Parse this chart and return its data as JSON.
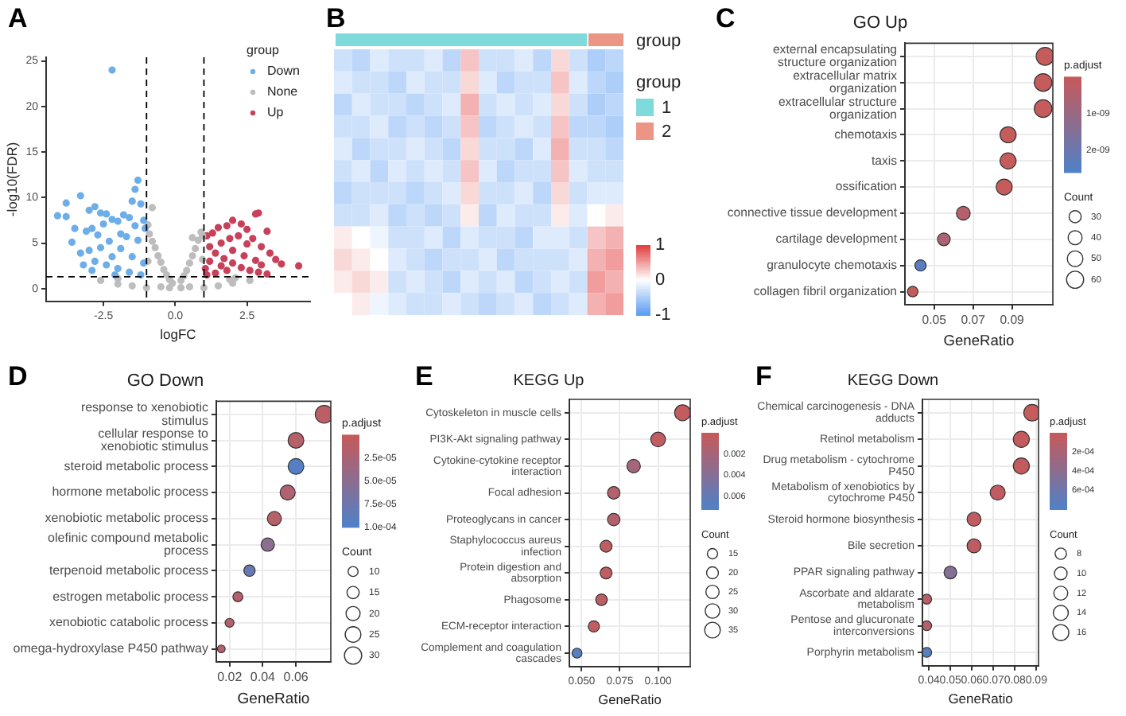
{
  "chart_data": [
    {
      "type": "scatter",
      "annotations": [
        "A"
      ],
      "xlabel": "logFC",
      "ylabel": "-log10(FDR)",
      "xlim": [
        -4.5,
        4.7
      ],
      "ylim": [
        -1.4,
        25.4
      ],
      "xticks": [
        -2.5,
        {
          "value": 0,
          "label": "0.0"
        },
        2.5
      ],
      "yticks": [
        0,
        5,
        10,
        15,
        20,
        25
      ],
      "grid": false,
      "marker": "circle",
      "legend": "top right",
      "legend_title": "group",
      "ref_lines": [
        {
          "axis": "x",
          "value": -1,
          "line_style": "dashed"
        },
        {
          "axis": "x",
          "value": 1,
          "line_style": "dashed"
        },
        {
          "axis": "y",
          "value": 1.3,
          "line_style": "dashed"
        }
      ],
      "series": [
        {
          "name": "Down",
          "color": "#6eaee8",
          "x": [
            -2.2,
            -1.3,
            -1.4,
            -1.5,
            -1.2,
            -3.3,
            -3.8,
            -4.1,
            -3.8,
            -2.8,
            -3.0,
            -2.6,
            -2.4,
            -3.5,
            -3.6,
            -3.1,
            -2.9,
            -2.7,
            -2.5,
            -2.2,
            -2.0,
            -1.8,
            -1.6,
            -1.1,
            -1.05,
            -1.4,
            -1.9,
            -2.3,
            -2.6,
            -3.0,
            -3.3,
            -2.8,
            -2.4,
            -2.0,
            -1.6,
            -1.2,
            -1.1,
            -1.5,
            -1.9,
            -2.2,
            -1.3,
            -1.7,
            -2.9,
            -3.2,
            -2.1
          ],
          "values": [
            24,
            11.9,
            10.9,
            9.6,
            9.3,
            10.2,
            9.4,
            8.0,
            7.9,
            9.0,
            8.6,
            8.3,
            8.2,
            6.6,
            5.1,
            6.3,
            6.6,
            5.9,
            7.1,
            7.6,
            7.4,
            8.1,
            7.8,
            7.5,
            6.6,
            6.9,
            6.0,
            5.2,
            4.5,
            4.2,
            3.9,
            3.0,
            2.6,
            2.2,
            1.8,
            1.5,
            2.8,
            3.5,
            4.4,
            3.5,
            5.3,
            5.7,
            2.0,
            2.6,
            1.5
          ]
        },
        {
          "name": "None",
          "color": "#bdbdbd",
          "x": [
            -0.8,
            -0.95,
            -0.9,
            -0.8,
            -0.7,
            -0.6,
            -0.5,
            -0.4,
            -0.3,
            -0.2,
            -0.1,
            0.2,
            0.3,
            0.4,
            0.5,
            0.6,
            0.6,
            0.7,
            0.8,
            0.9,
            0.95,
            -0.5,
            0.5,
            -1.0,
            1.0,
            -1.5,
            1.5,
            -2.0,
            2.0,
            -2.6,
            2.6,
            -0.95,
            0.95,
            -0.2,
            0.2,
            2.1,
            -2.0,
            1.9
          ],
          "values": [
            8.9,
            7.0,
            6.0,
            5.2,
            4.5,
            3.6,
            2.9,
            2.1,
            1.5,
            1.0,
            0.6,
            0.9,
            1.4,
            2.0,
            2.8,
            3.6,
            5.6,
            4.4,
            5.3,
            6.2,
            5.8,
            0.2,
            0.2,
            0.1,
            0.1,
            0.3,
            0.3,
            0.5,
            0.6,
            0.9,
            0.9,
            3.0,
            3.2,
            0.1,
            0.1,
            1.2,
            1.1,
            1.0
          ]
        },
        {
          "name": "Up",
          "color": "#c8415a",
          "x": [
            1.1,
            1.3,
            1.5,
            1.8,
            2.0,
            2.3,
            2.5,
            2.8,
            2.9,
            3.2,
            2.5,
            2.7,
            3.0,
            3.3,
            3.7,
            4.3,
            3.5,
            2.2,
            1.9,
            1.6,
            1.2,
            1.4,
            1.7,
            2.0,
            2.3,
            2.6,
            2.9,
            3.2,
            1.1,
            1.4,
            1.8,
            2.4,
            2.8,
            1.2,
            1.6,
            2.0,
            3.0,
            1.05
          ],
          "values": [
            5.8,
            6.1,
            6.7,
            6.9,
            7.5,
            7.1,
            6.5,
            8.2,
            8.3,
            6.3,
            4.9,
            5.5,
            4.6,
            3.9,
            2.7,
            2.5,
            3.2,
            5.8,
            5.5,
            5.0,
            4.6,
            3.9,
            3.3,
            2.8,
            2.3,
            2.0,
            1.8,
            1.6,
            1.5,
            1.7,
            2.0,
            3.6,
            3.1,
            3.0,
            2.5,
            4.2,
            2.6,
            2.2
          ]
        }
      ]
    },
    {
      "type": "heatmap",
      "annotations": [
        "B",
        "group",
        "group",
        "1",
        "2"
      ],
      "clim": [
        -1,
        1
      ],
      "cticks": [
        -1,
        0,
        1
      ],
      "categories": [
        null,
        null,
        null,
        null,
        null,
        null,
        null,
        null,
        null,
        null,
        null,
        null,
        null,
        null,
        null,
        null
      ],
      "y_categories": [
        null,
        null,
        null,
        null,
        null,
        null,
        null,
        null,
        null,
        null,
        null,
        null
      ],
      "cells": [
        [
          -0.3,
          -0.4,
          -0.2,
          -0.3,
          -0.3,
          -0.2,
          -0.4,
          0.3,
          -0.3,
          -0.3,
          -0.2,
          -0.4,
          0.2,
          -0.3,
          -0.5,
          -0.4
        ],
        [
          -0.2,
          -0.3,
          -0.3,
          -0.4,
          -0.2,
          -0.3,
          -0.3,
          0.2,
          -0.2,
          -0.4,
          -0.3,
          -0.3,
          0.3,
          -0.2,
          -0.4,
          -0.5
        ],
        [
          -0.4,
          -0.2,
          -0.3,
          -0.3,
          -0.4,
          -0.3,
          -0.2,
          0.4,
          -0.3,
          -0.2,
          -0.3,
          -0.2,
          0.2,
          -0.3,
          -0.5,
          -0.4
        ],
        [
          -0.3,
          -0.3,
          -0.2,
          -0.4,
          -0.3,
          -0.4,
          -0.3,
          0.3,
          -0.4,
          -0.3,
          -0.2,
          -0.3,
          0.3,
          -0.4,
          -0.4,
          -0.5
        ],
        [
          -0.2,
          -0.4,
          -0.3,
          -0.3,
          -0.2,
          -0.3,
          -0.4,
          0.2,
          -0.3,
          -0.3,
          -0.4,
          -0.2,
          0.4,
          -0.3,
          -0.3,
          -0.4
        ],
        [
          -0.3,
          -0.2,
          -0.4,
          -0.2,
          -0.3,
          -0.2,
          -0.3,
          0.3,
          -0.2,
          -0.4,
          -0.3,
          -0.3,
          0.3,
          -0.2,
          -0.3,
          -0.3
        ],
        [
          -0.4,
          -0.3,
          -0.3,
          -0.3,
          -0.4,
          -0.3,
          -0.2,
          0.2,
          -0.3,
          -0.3,
          -0.2,
          -0.4,
          0.2,
          -0.3,
          -0.2,
          -0.2
        ],
        [
          -0.3,
          -0.3,
          -0.2,
          -0.4,
          -0.3,
          -0.4,
          -0.3,
          0.1,
          -0.4,
          -0.2,
          -0.3,
          -0.3,
          0.1,
          -0.2,
          0,
          0.1
        ],
        [
          0.1,
          0,
          -0.1,
          -0.3,
          -0.3,
          -0.2,
          -0.4,
          -0.2,
          -0.3,
          -0.3,
          -0.4,
          -0.2,
          -0.2,
          -0.3,
          0.3,
          0.4
        ],
        [
          0.2,
          0.1,
          0,
          -0.2,
          -0.3,
          -0.4,
          -0.3,
          -0.3,
          -0.2,
          -0.4,
          -0.3,
          -0.3,
          -0.3,
          -0.2,
          0.4,
          0.5
        ],
        [
          0.1,
          0.2,
          0.1,
          -0.3,
          -0.2,
          -0.3,
          -0.4,
          -0.2,
          -0.3,
          -0.2,
          -0.4,
          -0.3,
          -0.2,
          -0.3,
          0.5,
          0.4
        ],
        [
          0,
          0.1,
          -0.1,
          -0.2,
          -0.3,
          -0.3,
          -0.2,
          -0.3,
          -0.4,
          -0.3,
          -0.2,
          -0.4,
          -0.3,
          -0.2,
          0.4,
          0.5
        ]
      ]
    },
    {
      "type": "bubble",
      "orientation": "horizontal",
      "annotations": [
        "C"
      ],
      "title": "GO Up",
      "xlabel": "GeneRatio",
      "grid": true,
      "clabel": "p.adjust",
      "legend_title": "Count",
      "categories": [
        "external encapsulating structure organization",
        "extracellular matrix organization",
        "extracellular structure organization",
        "chemotaxis",
        "taxis",
        "ossification",
        "connective tissue development",
        "cartilage development",
        "granulocyte chemotaxis",
        "collagen fibril organization"
      ],
      "values": [
        0.107,
        0.106,
        0.106,
        0.088,
        0.088,
        0.086,
        0.065,
        0.055,
        0.043,
        0.039
      ],
      "sizes": [
        65,
        64,
        64,
        53,
        53,
        52,
        39,
        33,
        26,
        23
      ],
      "size_legend": [
        30,
        40,
        50,
        60
      ],
      "cvalues": [
        5e-11,
        5e-11,
        5e-11,
        5e-11,
        5e-11,
        5e-11,
        4e-10,
        6e-10,
        2.4e-09,
        5e-11
      ],
      "clim": [
        2.6e-09,
        0
      ],
      "cticks": [
        {
          "value": 1e-09,
          "label": "1e-09"
        },
        {
          "value": 2e-09,
          "label": "2e-09"
        }
      ],
      "xlim": [
        0.035,
        0.111
      ],
      "xticks": [
        0.05,
        0.07,
        0.09
      ]
    },
    {
      "type": "bubble",
      "orientation": "horizontal",
      "annotations": [
        "D"
      ],
      "title": "GO Down",
      "xlabel": "GeneRatio",
      "grid": true,
      "clabel": "p.adjust",
      "legend_title": "Count",
      "categories": [
        "response to xenobiotic stimulus",
        "cellular response to xenobiotic stimulus",
        "steroid metabolic process",
        "hormone metabolic process",
        "xenobiotic metabolic process",
        "olefinic compound metabolic process",
        "terpenoid metabolic process",
        "estrogen metabolic process",
        "xenobiotic catabolic process",
        "omega-hydroxylase P450 pathway"
      ],
      "values": [
        0.077,
        0.06,
        0.06,
        0.055,
        0.047,
        0.043,
        0.032,
        0.025,
        0.02,
        0.015
      ],
      "sizes": [
        32,
        25,
        25,
        23,
        20,
        18,
        13,
        10,
        8,
        6
      ],
      "size_legend": [
        10,
        15,
        20,
        25,
        30
      ],
      "cvalues": [
        1e-05,
        1.5e-05,
        9.5e-05,
        2e-05,
        1.5e-05,
        5e-05,
        8e-05,
        1.5e-05,
        1.5e-05,
        1.5e-05
      ],
      "clim": [
        0.0001,
        0
      ],
      "cticks": [
        {
          "value": 2.5e-05,
          "label": "2.5e-05"
        },
        {
          "value": 5e-05,
          "label": "5.0e-05"
        },
        {
          "value": 7.5e-05,
          "label": "7.5e-05"
        },
        {
          "value": 0.0001,
          "label": "1.0e-04"
        }
      ],
      "xlim": [
        0.012,
        0.081
      ],
      "xticks": [
        0.02,
        0.04,
        0.06
      ]
    },
    {
      "type": "bubble",
      "orientation": "horizontal",
      "annotations": [
        "E"
      ],
      "title": "KEGG Up",
      "xlabel": "GeneRatio",
      "grid": true,
      "clabel": "p.adjust",
      "legend_title": "Count",
      "categories": [
        "Cytoskeleton in muscle cells",
        "PI3K-Akt signaling pathway",
        "Cytokine-cytokine receptor interaction",
        "Focal adhesion",
        "Proteoglycans in cancer",
        "Staphylococcus aureus infection",
        "Protein digestion and absorption",
        "Phagosome",
        "ECM-receptor interaction",
        "Complement and coagulation cascades"
      ],
      "values": [
        0.116,
        0.1,
        0.084,
        0.071,
        0.071,
        0.066,
        0.066,
        0.063,
        0.058,
        0.047
      ],
      "sizes": [
        36,
        31,
        26,
        22,
        22,
        20,
        20,
        19,
        18,
        14
      ],
      "size_legend": [
        15,
        20,
        25,
        30,
        35
      ],
      "cvalues": [
        0.0003,
        0.0005,
        0.0022,
        0.0012,
        0.0012,
        0.0005,
        0.0005,
        0.0007,
        0.0005,
        0.0068
      ],
      "clim": [
        0.0072,
        0
      ],
      "cticks": [
        0.002,
        0.004,
        0.006
      ],
      "xlim": [
        0.042,
        0.121
      ],
      "xticks": [
        {
          "value": 0.05,
          "label": "0.050"
        },
        {
          "value": 0.075,
          "label": "0.075"
        },
        {
          "value": 0.1,
          "label": "0.100"
        }
      ]
    },
    {
      "type": "bubble",
      "orientation": "horizontal",
      "annotations": [
        "F"
      ],
      "title": "KEGG Down",
      "xlabel": "GeneRatio",
      "grid": true,
      "clabel": "p.adjust",
      "legend_title": "Count",
      "categories": [
        "Chemical carcinogenesis - DNA adducts",
        "Retinol metabolism",
        "Drug metabolism - cytochrome P450",
        "Metabolism of xenobiotics by cytochrome P450",
        "Steroid hormone biosynthesis",
        "Bile secretion",
        "PPAR signaling pathway",
        "Ascorbate and aldarate metabolism",
        "Pentose and glucuronate interconversions",
        "Porphyrin metabolism"
      ],
      "values": [
        0.088,
        0.083,
        0.083,
        0.072,
        0.061,
        0.061,
        0.05,
        0.039,
        0.039,
        0.039
      ],
      "sizes": [
        17,
        16,
        16,
        14,
        12,
        12,
        10,
        6,
        6,
        6
      ],
      "size_legend": [
        8,
        10,
        12,
        14,
        16
      ],
      "cvalues": [
        2e-05,
        3e-05,
        3e-05,
        5e-05,
        5e-05,
        5e-05,
        0.00045,
        0.0001,
        0.00012,
        0.00075
      ],
      "clim": [
        0.0008,
        0
      ],
      "cticks": [
        {
          "value": 0.0002,
          "label": "2e-04"
        },
        {
          "value": 0.0004,
          "label": "4e-04"
        },
        {
          "value": 0.0006,
          "label": "6e-04"
        }
      ],
      "xlim": [
        0.037,
        0.091
      ],
      "xticks": [
        0.04,
        0.05,
        0.06,
        0.07,
        0.08,
        0.09
      ]
    }
  ]
}
